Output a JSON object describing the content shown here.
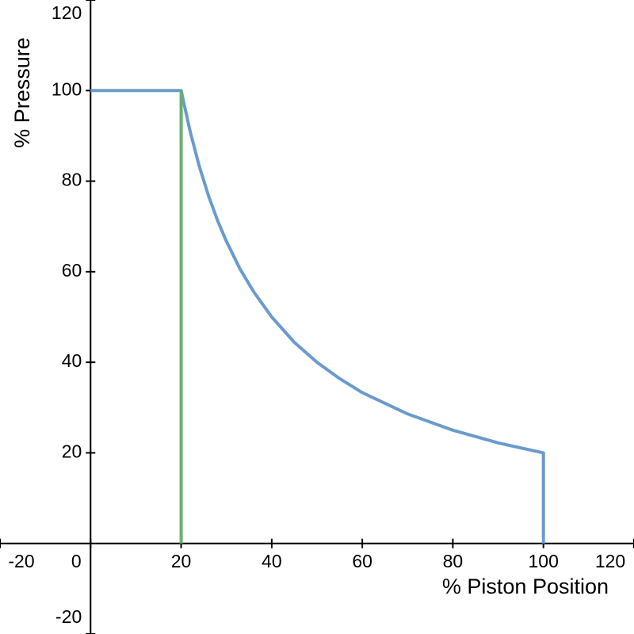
{
  "chart_data": {
    "type": "line",
    "xlabel": "% Piston Position",
    "ylabel": "% Pressure",
    "xlim": [
      -20,
      120
    ],
    "ylim": [
      -20,
      120
    ],
    "xticks": [
      -20,
      0,
      20,
      40,
      60,
      80,
      100,
      120
    ],
    "yticks": [
      -20,
      20,
      40,
      60,
      80,
      100,
      120
    ],
    "grid": false,
    "series": [
      {
        "color": "#6b9bcc",
        "x": [
          0,
          20,
          22,
          24,
          26,
          28,
          30,
          33,
          36,
          40,
          45,
          50,
          55,
          60,
          70,
          80,
          90,
          100,
          100
        ],
        "values": [
          100,
          100,
          90.9,
          83.3,
          76.9,
          71.4,
          66.7,
          60.6,
          55.6,
          50,
          44.4,
          40,
          36.4,
          33.3,
          28.6,
          25,
          22.2,
          20,
          0
        ]
      },
      {
        "color": "#6aae72",
        "x": [
          20,
          20
        ],
        "values": [
          0,
          100
        ]
      }
    ]
  }
}
